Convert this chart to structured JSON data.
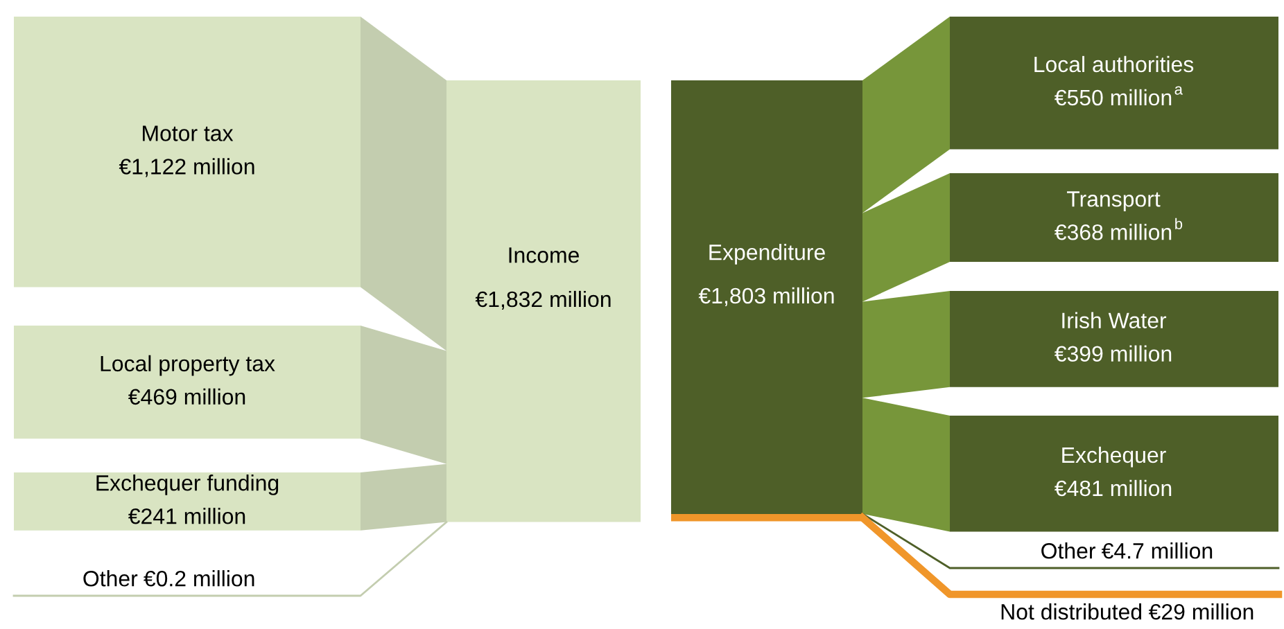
{
  "chart_data": {
    "type": "other",
    "categories": [
      "Motor tax",
      "Local property tax",
      "Exchequer funding",
      "Other",
      "Income",
      "Expenditure",
      "Local authorities",
      "Transport",
      "Irish Water",
      "Exchequer",
      "Other",
      "Not distributed"
    ],
    "values": [
      1122,
      469,
      241,
      0.2,
      1832,
      1803,
      550,
      368,
      399,
      481,
      4.7,
      29
    ],
    "value_labels": [
      "€1,122 million",
      "€469 million",
      "€241 million",
      "€0.2 million",
      "€1,832 million",
      "€1,803 million",
      "€550 million",
      "€368 million",
      "€399 million",
      "€481 million",
      "€4.7 million",
      "€29 million"
    ],
    "annotations": [
      "a",
      "b"
    ],
    "colors": [
      "#d9e4c2",
      "#d9e4c2",
      "#d9e4c2",
      "#d9e4c2",
      "#d9e4c2",
      "#4e5f28",
      "#4e5f28",
      "#4e5f28",
      "#4e5f28",
      "#4e5f28",
      "#4e5f28",
      "#f0962a"
    ]
  }
}
